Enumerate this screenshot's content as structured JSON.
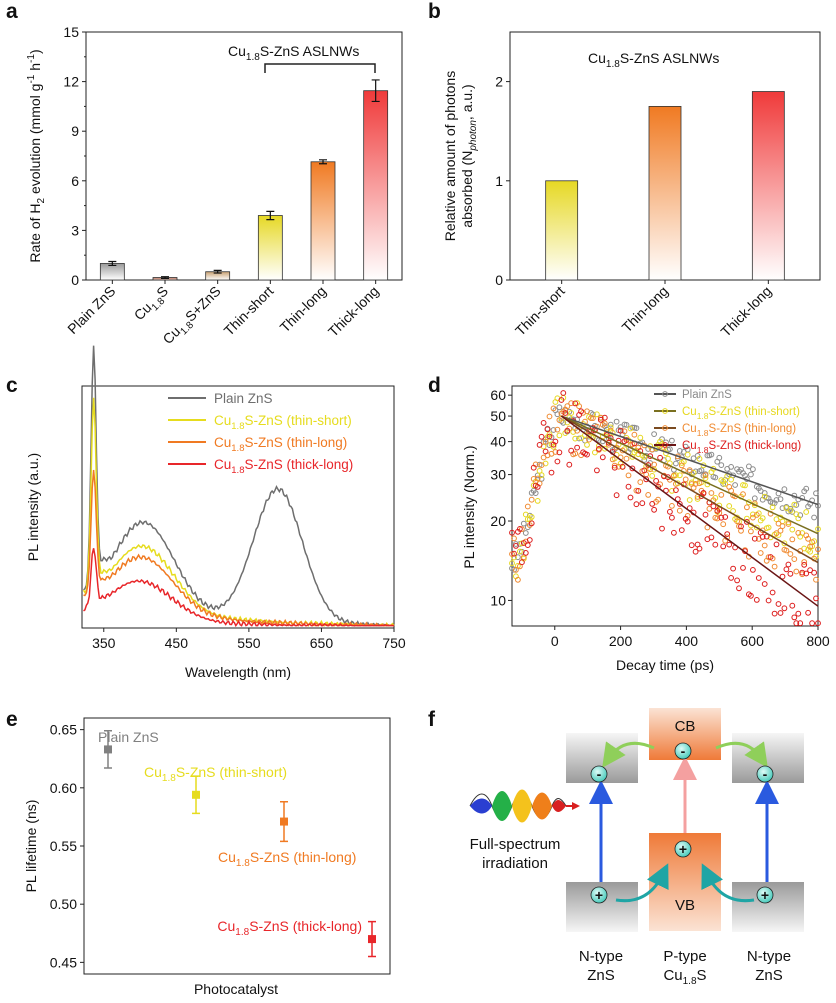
{
  "chart_data": [
    {
      "panel": "a",
      "type": "bar",
      "title": "Cu1.8S-ZnS ASLNWs",
      "xlabel": "",
      "ylabel": "Rate of H2 evolution (mmol g-1 h-1)",
      "ylim": [
        0,
        15
      ],
      "yticks": [
        0,
        3,
        6,
        9,
        12,
        15
      ],
      "categories": [
        "Plain ZnS",
        "Cu1.8S",
        "Cu1.8S+ZnS",
        "Thin-short",
        "Thin-long",
        "Thick-long"
      ],
      "values": [
        1.0,
        0.15,
        0.5,
        3.9,
        7.15,
        11.45
      ],
      "errors": [
        0.12,
        0.05,
        0.08,
        0.25,
        0.12,
        0.65
      ],
      "bar_colors": [
        "#8a8a8a",
        "#b0604a",
        "#c8a070",
        "#e8d82a",
        "#f07a22",
        "#f03a3a"
      ]
    },
    {
      "panel": "b",
      "type": "bar",
      "title": "Cu1.8S-ZnS ASLNWs",
      "ylabel": "Relative amount of photons absorbed (Nphoton, a.u.)",
      "ylim": [
        0,
        2.5
      ],
      "yticks": [
        0,
        1,
        2
      ],
      "categories": [
        "Thin-short",
        "Thin-long",
        "Thick-long"
      ],
      "values": [
        1.0,
        1.75,
        1.9
      ],
      "bar_colors": [
        "#e8d82a",
        "#f07a22",
        "#f03a3a"
      ]
    },
    {
      "panel": "c",
      "type": "line",
      "xlabel": "Wavelength (nm)",
      "ylabel": "PL intensity (a.u.)",
      "xlim": [
        320,
        750
      ],
      "xticks": [
        350,
        450,
        550,
        650,
        750
      ],
      "ylim": [
        0,
        1
      ],
      "series": [
        {
          "name": "Plain ZnS",
          "color": "#6e6e6e",
          "peak": 0.97,
          "shoulder": 0.05,
          "mid": 0.34,
          "vis": 0.55,
          "base": 0.12
        },
        {
          "name": "Cu1.8S-ZnS (thin-short)",
          "color": "#e6dc1e",
          "peak": 0.77,
          "shoulder": 0.03,
          "mid": 0.24,
          "vis": 0.0,
          "base": 0.12
        },
        {
          "name": "Cu1.8S-ZnS (thin-long)",
          "color": "#f07a22",
          "peak": 0.5,
          "shoulder": 0.02,
          "mid": 0.2,
          "vis": 0.0,
          "base": 0.11
        },
        {
          "name": "Cu1.8S-ZnS (thick-long)",
          "color": "#e8262a",
          "peak": 0.24,
          "shoulder": 0.01,
          "mid": 0.13,
          "vis": 0.0,
          "base": 0.06
        }
      ]
    },
    {
      "panel": "d",
      "type": "scatter",
      "xlabel": "Decay time (ps)",
      "ylabel": "PL intensity (Norm.)",
      "xlim": [
        -130,
        800
      ],
      "xticks": [
        0,
        200,
        400,
        600,
        800
      ],
      "ylim": [
        8,
        65
      ],
      "yscale": "log",
      "yticks": [
        10,
        20,
        30,
        40,
        50,
        60
      ],
      "series": [
        {
          "name": "Plain ZnS",
          "color": "#8a8a8a",
          "fit_color": "#555555",
          "tau": 1010,
          "seed": 3
        },
        {
          "name": "Cu1.8S-ZnS (thin-short)",
          "color": "#e6d81e",
          "fit_color": "#7a7020",
          "tau": 760,
          "seed": 7
        },
        {
          "name": "Cu1.8S-ZnS (thin-long)",
          "color": "#f08a30",
          "fit_color": "#7a4a20",
          "tau": 610,
          "seed": 11
        },
        {
          "name": "Cu1.8S-ZnS (thick-long)",
          "color": "#dd1c1c",
          "fit_color": "#6a1515",
          "tau": 470,
          "seed": 19
        }
      ]
    },
    {
      "panel": "e",
      "type": "scatter",
      "xlabel": "Photocatalyst",
      "ylabel": "PL lifetime (ns)",
      "ylim": [
        0.44,
        0.66
      ],
      "yticks": [
        0.45,
        0.5,
        0.55,
        0.6,
        0.65
      ],
      "points": [
        {
          "name": "Plain ZnS",
          "value": 0.633,
          "error": 0.016,
          "color": "#808080"
        },
        {
          "name": "Cu1.8S-ZnS (thin-short)",
          "value": 0.594,
          "error": 0.016,
          "color": "#e6dc1e"
        },
        {
          "name": "Cu1.8S-ZnS (thin-long)",
          "value": 0.571,
          "error": 0.017,
          "color": "#f07a22"
        },
        {
          "name": "Cu1.8S-ZnS (thick-long)",
          "value": 0.47,
          "error": 0.015,
          "color": "#e8262a"
        }
      ]
    }
  ],
  "panel_labels": {
    "a": "a",
    "b": "b",
    "c": "c",
    "d": "d",
    "e": "e",
    "f": "f"
  },
  "schematic": {
    "cb": "CB",
    "vb": "VB",
    "electron": "-",
    "hole": "+",
    "irradiation_line1": "Full-spectrum",
    "irradiation_line2": "irradiation",
    "n_type_1": "N-type",
    "zns_1": "ZnS",
    "p_type": "P-type",
    "cu18s": "Cu1.8S",
    "n_type_2": "N-type",
    "zns_2": "ZnS"
  }
}
